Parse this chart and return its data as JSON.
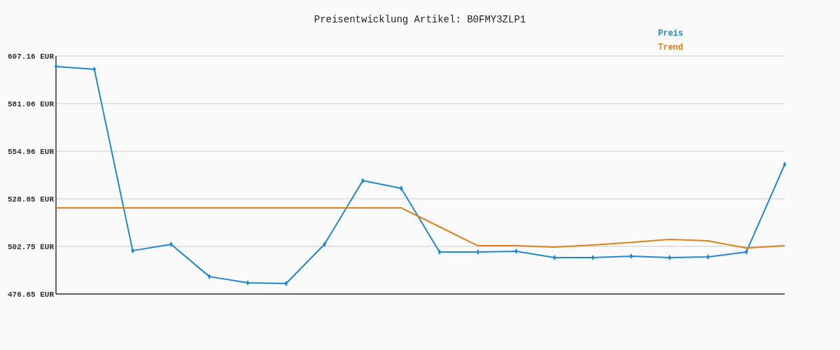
{
  "chart_data": {
    "type": "line",
    "title": "Preisentwicklung Artikel: B0FMY3ZLP1",
    "categories": [
      null,
      null,
      null,
      null,
      null,
      null,
      null,
      null,
      null,
      null,
      null,
      null,
      null,
      null,
      null,
      null,
      null,
      null,
      null,
      null
    ],
    "series": [
      {
        "name": "Preis",
        "color": "#1f88d0",
        "marker": "diamond",
        "values": [
          601.4,
          599.9,
          500.4,
          503.9,
          486.2,
          482.8,
          482.4,
          503.9,
          538.8,
          534.6,
          499.7,
          499.7,
          500.1,
          496.6,
          496.6,
          497.4,
          496.6,
          497.0,
          499.7,
          547.7
        ]
      },
      {
        "name": "Trend",
        "color": "#e0801c",
        "marker": "none",
        "values": [
          523.9,
          523.9,
          523.9,
          523.9,
          523.9,
          523.9,
          523.9,
          523.9,
          523.9,
          523.9,
          513.5,
          503.1,
          503.1,
          502.4,
          503.5,
          505.0,
          506.6,
          505.8,
          501.9,
          503.1
        ]
      }
    ],
    "ylim": [
      476.65,
      607.16
    ],
    "yticks": [
      {
        "value": 476.65,
        "label": "476.65 EUR"
      },
      {
        "value": 502.75,
        "label": "502.75 EUR"
      },
      {
        "value": 528.85,
        "label": "528.85 EUR"
      },
      {
        "value": 554.96,
        "label": "554.96 EUR"
      },
      {
        "value": 581.06,
        "label": "581.06 EUR"
      },
      {
        "value": 607.16,
        "label": "607.16 EUR"
      }
    ],
    "grid": "y",
    "legend": "top right",
    "line_style": "solid"
  }
}
